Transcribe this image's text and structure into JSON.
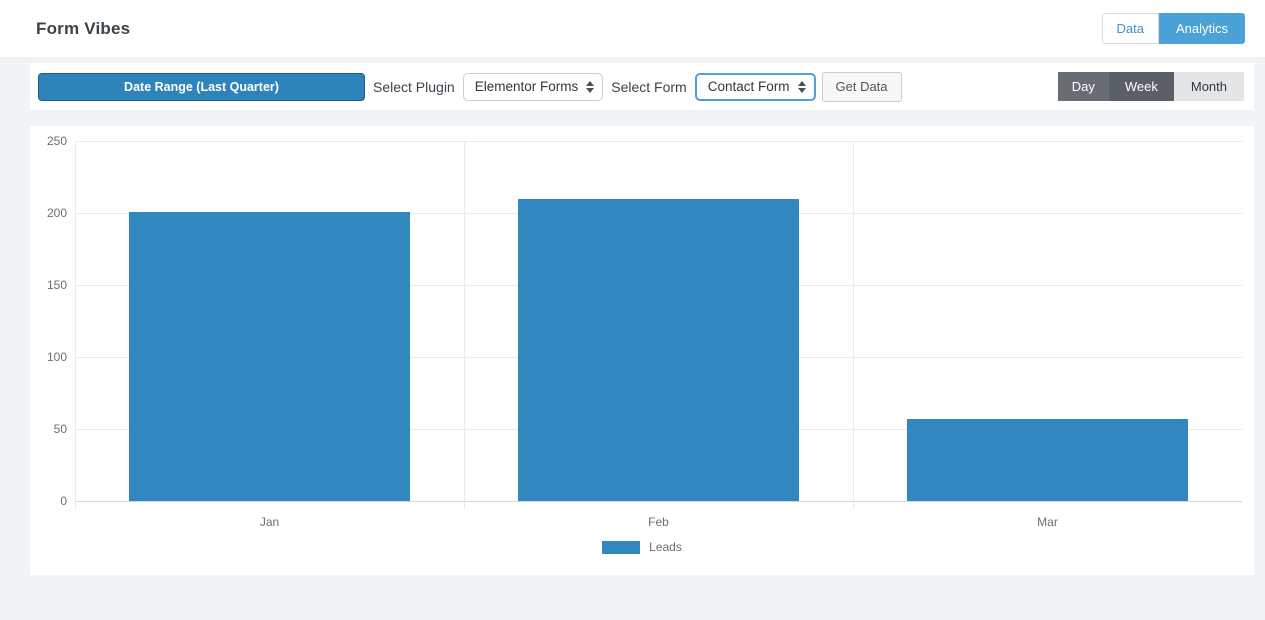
{
  "header": {
    "title": "Form Vibes",
    "tabs": [
      {
        "label": "Data",
        "active": false
      },
      {
        "label": "Analytics",
        "active": true
      }
    ]
  },
  "toolbar": {
    "date_range_label": "Date Range (Last Quarter)",
    "select_plugin_label": "Select Plugin",
    "plugin_selected_value": "Elementor Forms",
    "select_form_label": "Select Form",
    "form_selected_value": "Contact Form",
    "get_data_label": "Get Data",
    "granularity": [
      {
        "label": "Day",
        "active": false
      },
      {
        "label": "Week",
        "active": true
      },
      {
        "label": "Month",
        "active": false
      }
    ]
  },
  "colors": {
    "bar_blue": "#3387c1",
    "analytics_tab_blue": "#4aa2d8",
    "date_range_button_blue": "#2f83bb",
    "segment_dark_gray": "#676d73",
    "segment_active_gray": "#5a6065",
    "segment_light_gray": "#e4e5e6",
    "page_background": "#f1f4f6"
  },
  "chart_data": {
    "type": "bar",
    "categories": [
      "Jan",
      "Feb",
      "Mar"
    ],
    "series": [
      {
        "name": "Leads",
        "values": [
          201,
          210,
          57
        ],
        "color": "#3387c1"
      }
    ],
    "title": "",
    "xlabel": "",
    "ylabel": "",
    "ylim": [
      0,
      250
    ],
    "ytick_step": 50,
    "grid": true,
    "legend_position": "bottom"
  }
}
